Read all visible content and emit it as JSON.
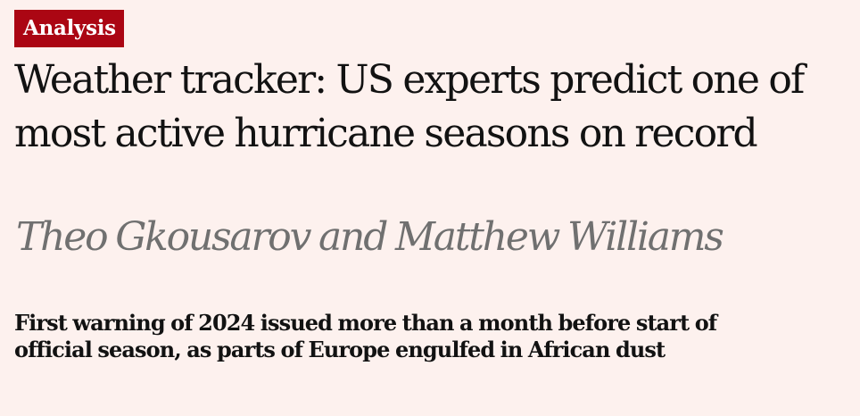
{
  "kicker": "Analysis",
  "headline": "Weather tracker: US experts predict one of most active hurricane seasons on record",
  "byline": "Theo Gkousarov and Matthew Williams",
  "standfirst": "First warning of 2024 issued more than a month before start of official season, as parts of Europe engulfed in African dust",
  "colors": {
    "background": "#fdf1ee",
    "kicker_background": "#ab0613",
    "kicker_text": "#ffffff",
    "headline_text": "#121212",
    "byline_text": "#707070"
  }
}
